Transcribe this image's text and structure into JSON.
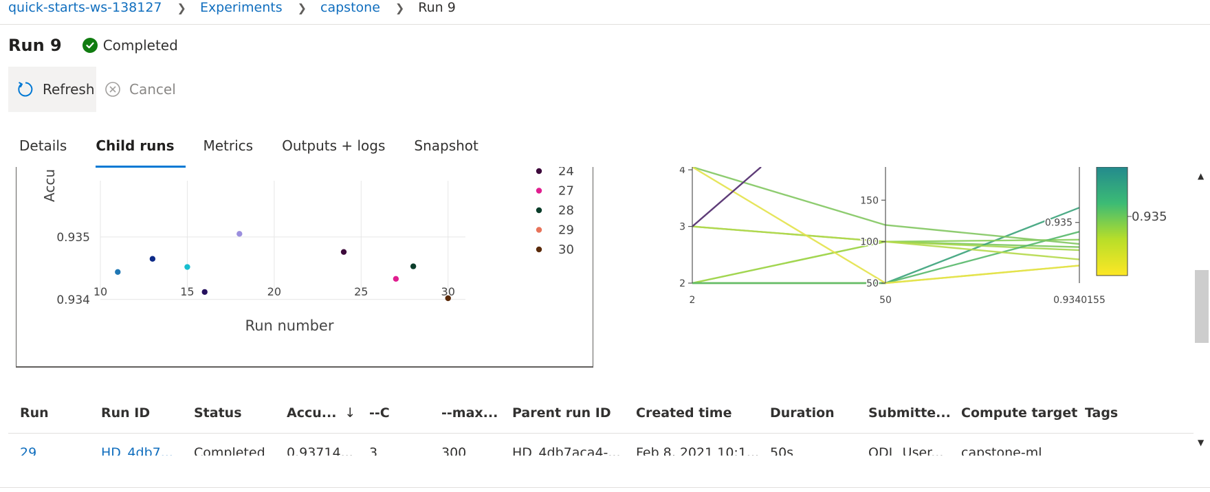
{
  "breadcrumb": {
    "items": [
      "quick-starts-ws-138127",
      "Experiments",
      "capstone"
    ],
    "current": "Run 9",
    "separator_icon": "chevron-right-icon"
  },
  "header": {
    "title": "Run 9",
    "status": "Completed",
    "status_icon": "check-circle-icon",
    "status_color": "#107c10"
  },
  "toolbar": {
    "refresh_label": "Refresh",
    "cancel_label": "Cancel"
  },
  "tabs": [
    {
      "label": "Details",
      "active": false
    },
    {
      "label": "Child runs",
      "active": true
    },
    {
      "label": "Metrics",
      "active": false
    },
    {
      "label": "Outputs + logs",
      "active": false
    },
    {
      "label": "Snapshot",
      "active": false
    }
  ],
  "accent_color": "#0078d4",
  "link_color": "#106ebe",
  "chart_data": [
    {
      "type": "scatter",
      "ylabel": "Accu",
      "xlabel": "Run number",
      "xlim": [
        10,
        31
      ],
      "ylim": [
        0.9338,
        0.9359
      ],
      "x_ticks": [
        10,
        15,
        20,
        25,
        30
      ],
      "y_ticks": [
        0.934,
        0.935
      ],
      "grid": true,
      "legend_placement": "right",
      "points": [
        {
          "x": 11,
          "y": 0.93444,
          "color": "#1f77b4"
        },
        {
          "x": 13,
          "y": 0.93465,
          "color": "#0d2a87"
        },
        {
          "x": 15,
          "y": 0.93452,
          "color": "#17becf"
        },
        {
          "x": 16,
          "y": 0.93412,
          "color": "#26115e"
        },
        {
          "x": 18,
          "y": 0.93505,
          "color": "#9b8fde"
        },
        {
          "x": 24,
          "y": 0.93476,
          "color": "#3d0a3b"
        },
        {
          "x": 27,
          "y": 0.93433,
          "color": "#e01e8f"
        },
        {
          "x": 28,
          "y": 0.93453,
          "color": "#0b3d2a"
        },
        {
          "x": 30,
          "y": 0.93402,
          "color": "#5a2a0a"
        }
      ],
      "legend": [
        {
          "name": "24",
          "color": "#3d0a3b"
        },
        {
          "name": "27",
          "color": "#e01e8f"
        },
        {
          "name": "28",
          "color": "#0b3d2a"
        },
        {
          "name": "29",
          "color": "#e8735a"
        },
        {
          "name": "30",
          "color": "#5a2a0a"
        }
      ]
    },
    {
      "type": "parallel-coordinates",
      "axes": [
        {
          "tick_labels": [
            "2",
            "3",
            "4"
          ],
          "bottom_label": "2",
          "range": [
            2,
            4.05
          ]
        },
        {
          "tick_labels": [
            "50",
            "100",
            "150"
          ],
          "bottom_label": "50",
          "range": [
            50,
            190
          ]
        },
        {
          "tick_labels": [
            "0.935"
          ],
          "bottom_label": "0.9340155",
          "range": [
            0.9340155,
            0.9359
          ]
        }
      ],
      "colorbar": {
        "tick_label": "0.935",
        "colors": [
          "#238a8d",
          "#3cbb75",
          "#b8de29",
          "#fde725"
        ]
      },
      "lines": [
        {
          "values": [
            3.0,
            100,
            0.9346
          ],
          "color": "#7dc65c"
        },
        {
          "values": [
            2.0,
            50,
            0.93524
          ],
          "color": "#3aa27a"
        },
        {
          "values": [
            2.0,
            100,
            0.93472
          ],
          "color": "#8bcf5a"
        },
        {
          "values": [
            2.0,
            50,
            0.9343
          ],
          "color": "#e0e24a"
        },
        {
          "values": [
            2.0,
            100,
            0.93455
          ],
          "color": "#a4d64e"
        },
        {
          "values": [
            2.0,
            50,
            0.93485
          ],
          "color": "#56b86a"
        },
        {
          "values": [
            3.0,
            100,
            0.9344
          ],
          "color": "#b5d94a"
        },
        {
          "values": [
            4.05,
            120,
            0.93465
          ],
          "color": "#82c660"
        },
        {
          "values": [
            4.05,
            50,
            0.9343
          ],
          "color": "#e3e24a"
        }
      ]
    }
  ],
  "table": {
    "columns": [
      "Run",
      "Run ID",
      "Status",
      "Accu...",
      "--C",
      "--max...",
      "Parent run ID",
      "Created time",
      "Duration",
      "Submitte...",
      "Compute target",
      "Tags"
    ],
    "sort_icon": "arrow-down-icon",
    "rows": [
      [
        "29",
        "HD_4db7...",
        "Completed",
        "0.93714...",
        "3",
        "300",
        "HD_4db7aca4-...",
        "Feb 8, 2021 10:1...",
        "50s",
        "ODL_User...",
        "capstone-ml",
        ""
      ]
    ]
  }
}
